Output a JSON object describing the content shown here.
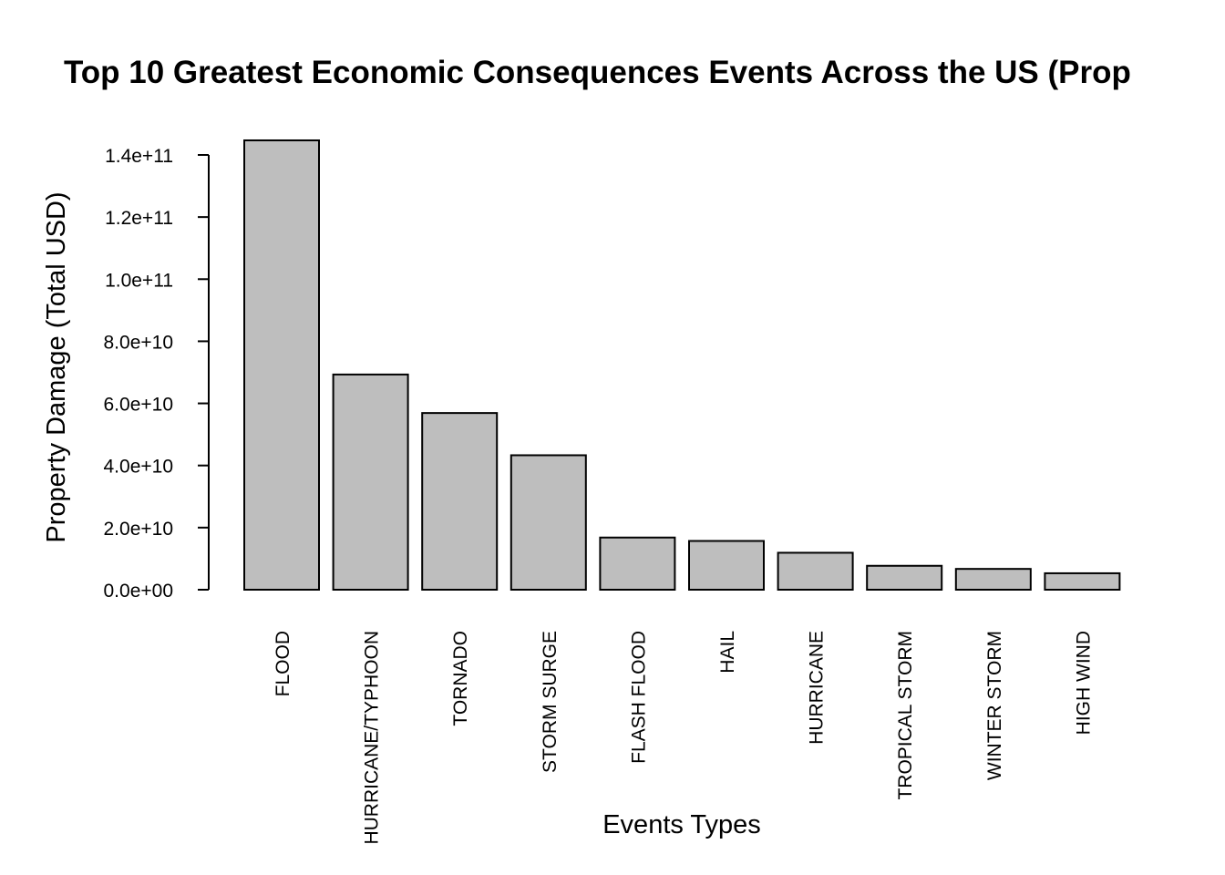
{
  "chart_data": {
    "type": "bar",
    "title": "Top 10 Greatest Economic Consequences Events Across the US (Prop",
    "xlabel": "Events Types",
    "ylabel": "Property Damage (Total USD)",
    "categories": [
      "FLOOD",
      "HURRICANE/TYPHOON",
      "TORNADO",
      "STORM SURGE",
      "FLASH FLOOD",
      "HAIL",
      "HURRICANE",
      "TROPICAL STORM",
      "WINTER STORM",
      "HIGH WIND"
    ],
    "values": [
      144700000000,
      69300000000,
      56900000000,
      43300000000,
      16800000000,
      15700000000,
      11900000000,
      7700000000,
      6700000000,
      5300000000
    ],
    "yticks": [
      {
        "value": 0,
        "label": "0.0e+00"
      },
      {
        "value": 20000000000,
        "label": "2.0e+10"
      },
      {
        "value": 40000000000,
        "label": "4.0e+10"
      },
      {
        "value": 60000000000,
        "label": "6.0e+10"
      },
      {
        "value": 80000000000,
        "label": "8.0e+10"
      },
      {
        "value": 100000000000,
        "label": "1.0e+11"
      },
      {
        "value": 120000000000,
        "label": "1.2e+11"
      },
      {
        "value": 140000000000,
        "label": "1.4e+11"
      }
    ],
    "ylim": [
      0,
      140000000000
    ],
    "grid": false,
    "colors": {
      "bar_fill": "#bebebe",
      "bar_stroke": "#000000"
    }
  }
}
